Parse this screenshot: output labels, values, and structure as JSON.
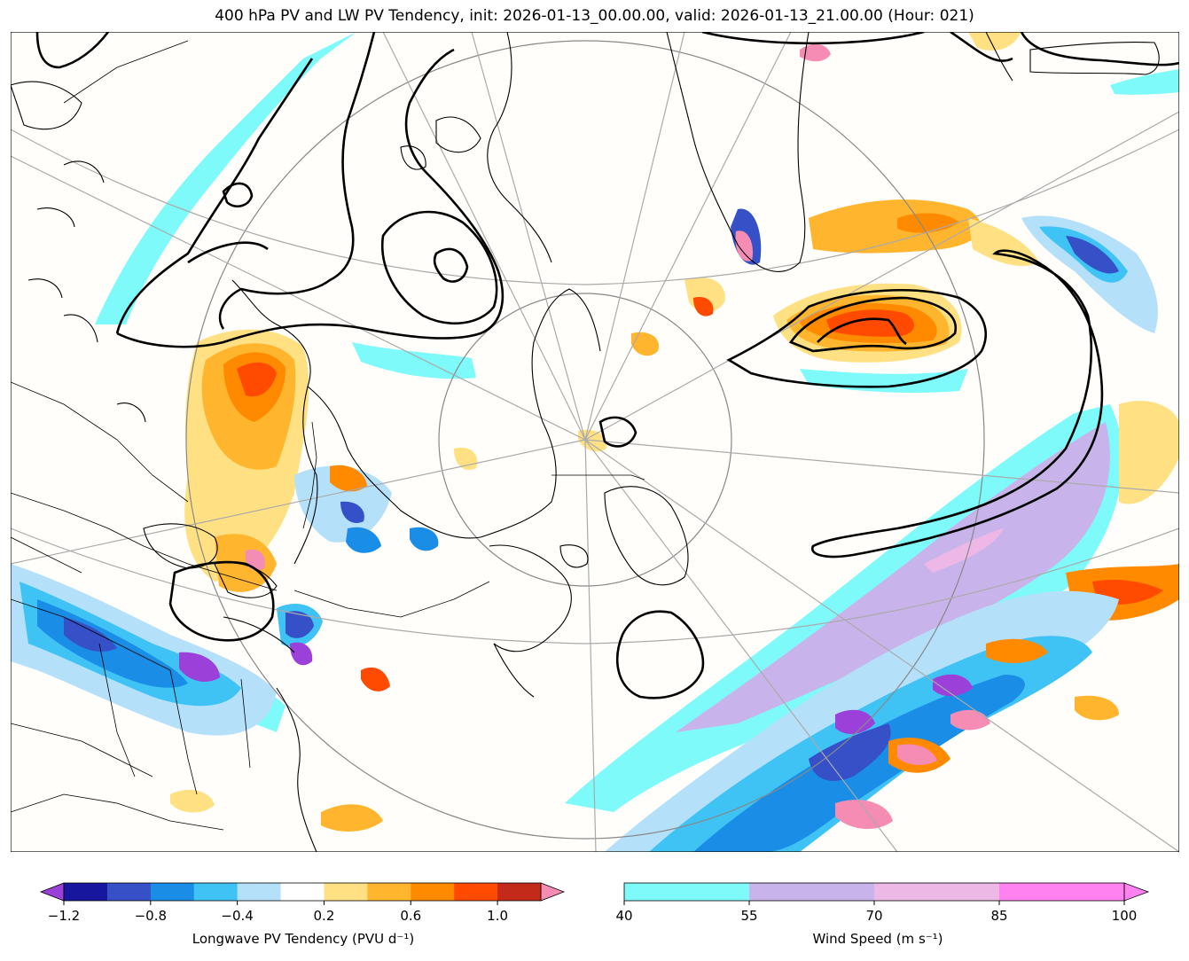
{
  "title": "400 hPa PV and LW PV Tendency, init: 2026-01-13_00.00.00, valid: 2026-01-13_21.00.00 (Hour: 021)",
  "colorbars": {
    "pv_tendency": {
      "label": "Longwave PV Tendency (PVU d⁻¹)",
      "ticks": [
        "−1.2",
        "−0.8",
        "−0.4",
        "0.2",
        "0.6",
        "1.0"
      ],
      "colors": [
        "#16169e",
        "#3650c8",
        "#1a8ee6",
        "#3fc3f5",
        "#b5e0fa",
        "#ffffff",
        "#ffe184",
        "#ffb52d",
        "#ff8a00",
        "#ff4a00",
        "#c42a1a"
      ],
      "under_color": "#9b40d8",
      "over_color": "#f48cb4"
    },
    "wind_speed": {
      "label": "Wind Speed (m s⁻¹)",
      "ticks": [
        "40",
        "55",
        "70",
        "85",
        "100"
      ],
      "colors": [
        "#7ffafa",
        "#c8b4ea",
        "#eeb8e6",
        "#ff82f0"
      ]
    }
  }
}
